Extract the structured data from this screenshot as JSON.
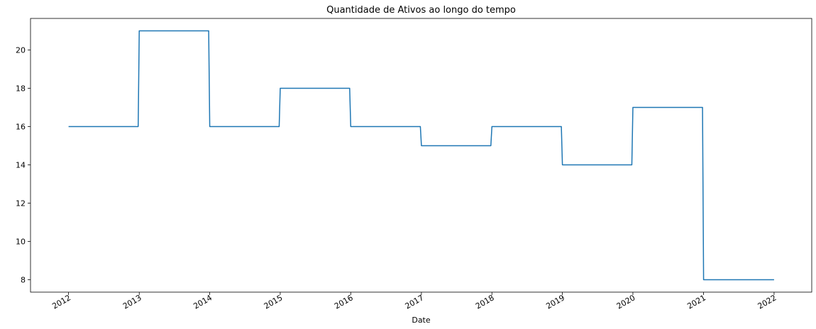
{
  "chart_data": {
    "type": "line",
    "step": true,
    "title": "Quantidade de Ativos ao longo do tempo",
    "xlabel": "Date",
    "ylabel": "",
    "ylim": [
      7.35,
      21.65
    ],
    "xlim": [
      "2011-06-18",
      "2022-07-15"
    ],
    "yticks": [
      8,
      10,
      12,
      14,
      16,
      18,
      20
    ],
    "xticks": [
      "2012",
      "2013",
      "2014",
      "2015",
      "2016",
      "2017",
      "2018",
      "2019",
      "2020",
      "2021",
      "2022"
    ],
    "grid": false,
    "line_color": "#1f77b4",
    "series": [
      {
        "x": [
          "2012-01-01",
          "2013-01-01",
          "2014-01-01",
          "2015-01-01",
          "2016-01-01",
          "2017-01-01",
          "2018-01-01",
          "2019-01-01",
          "2020-01-01",
          "2021-01-01",
          "2022-01-01"
        ],
        "y": [
          16,
          21,
          16,
          18,
          16,
          15,
          16,
          14,
          17,
          8,
          8
        ]
      }
    ]
  }
}
